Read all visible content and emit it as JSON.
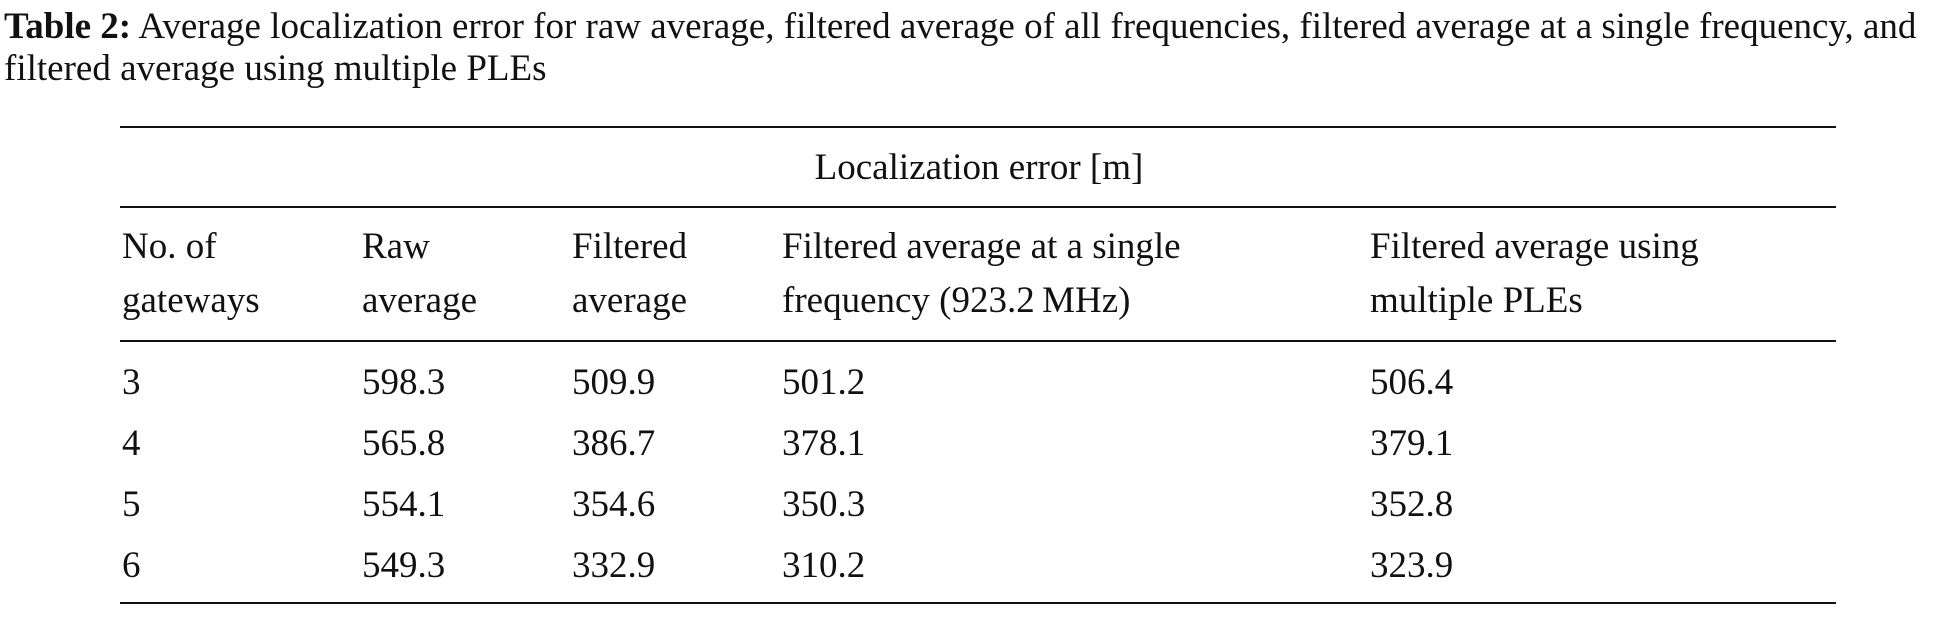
{
  "caption": {
    "label": "Table 2:",
    "text": "Average localization error for raw average, filtered average of all frequencies, filtered average at a single frequency, and filtered average using multiple PLEs"
  },
  "table": {
    "group_header": "Localization error [m]",
    "columns": [
      [
        "No. of",
        "gateways"
      ],
      [
        "Raw",
        "average"
      ],
      [
        "Filtered",
        "average"
      ],
      [
        "Filtered average at a single",
        "frequency (923.2 MHz)"
      ],
      [
        "Filtered average using",
        "multiple PLEs"
      ]
    ],
    "rows": [
      [
        3,
        598.3,
        509.9,
        501.2,
        506.4
      ],
      [
        4,
        565.8,
        386.7,
        378.1,
        379.1
      ],
      [
        5,
        554.1,
        354.6,
        350.3,
        352.8
      ],
      [
        6,
        549.3,
        332.9,
        310.2,
        323.9
      ]
    ]
  }
}
